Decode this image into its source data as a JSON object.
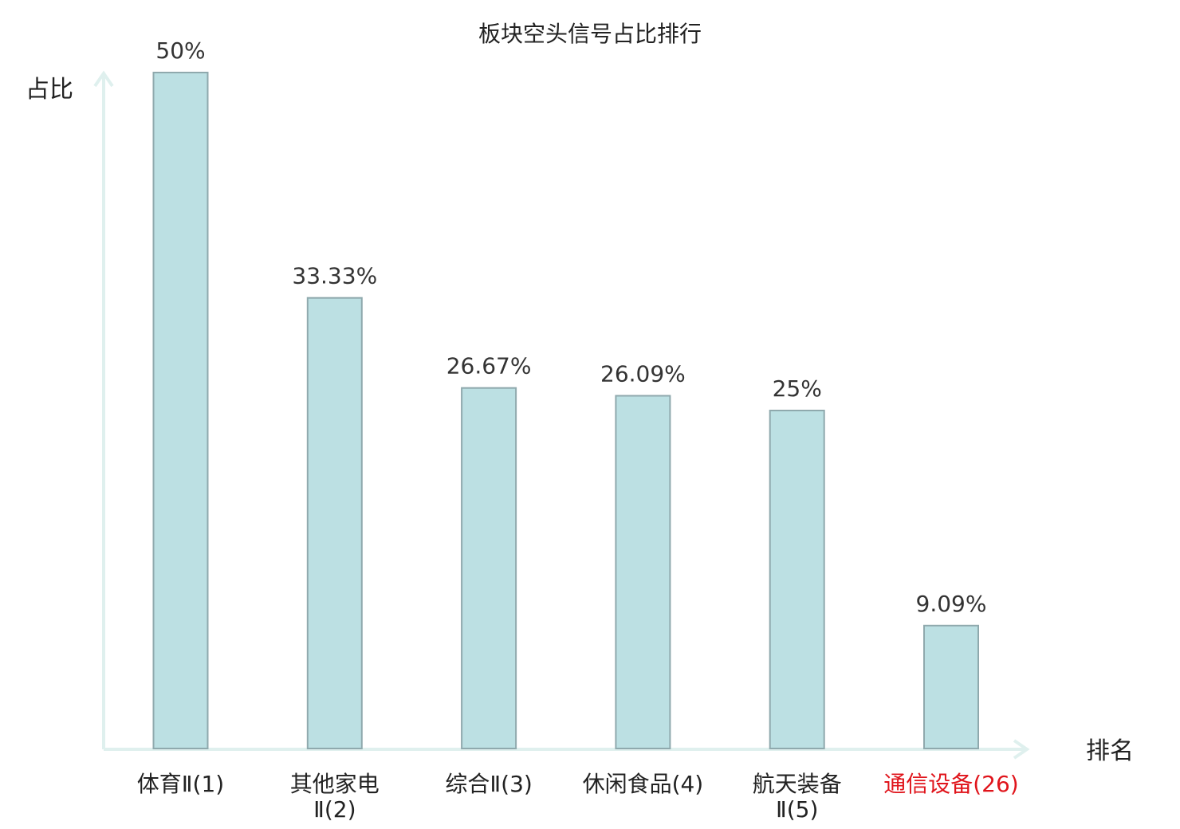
{
  "chart_data": {
    "type": "bar",
    "title": "板块空头信号占比排行",
    "ylabel": "占比",
    "xlabel": "排名",
    "ylim": [
      0,
      50
    ],
    "grid": false,
    "legend": "none",
    "categories": [
      "体育Ⅱ(1)",
      "其他家电Ⅱ(2)",
      "综合Ⅱ(3)",
      "休闲食品(4)",
      "航天装备Ⅱ(5)",
      "通信设备(26)"
    ],
    "category_lines": [
      [
        "体育Ⅱ(1)"
      ],
      [
        "其他家电",
        "Ⅱ(2)"
      ],
      [
        "综合Ⅱ(3)"
      ],
      [
        "休闲食品(4)"
      ],
      [
        "航天装备",
        "Ⅱ(5)"
      ],
      [
        "通信设备(26)"
      ]
    ],
    "values": [
      50,
      33.33,
      26.67,
      26.09,
      25,
      9.09
    ],
    "value_labels": [
      "50%",
      "33.33%",
      "26.67%",
      "26.09%",
      "25%",
      "9.09%"
    ],
    "highlighted_category_index": 5,
    "colors": {
      "bar_fill": "#bce0e3",
      "bar_stroke": "#8fa9ad",
      "axis": "#dff0ee",
      "highlight_text": "#e0141b",
      "text": "#222222"
    }
  }
}
